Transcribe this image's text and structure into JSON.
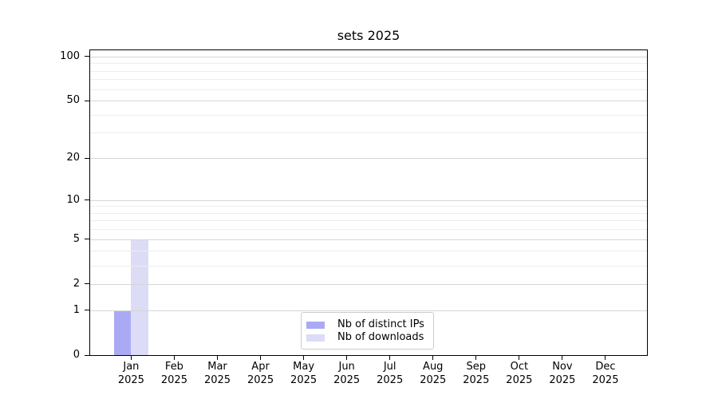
{
  "colors": {
    "grid_major": "#d6d6d6",
    "grid_minor": "#ededed",
    "axis": "#000000",
    "legend_border": "#cccccc",
    "background": "#ffffff"
  },
  "chart_data": {
    "type": "bar",
    "title": "sets 2025",
    "categories": [
      "Jan 2025",
      "Feb 2025",
      "Mar 2025",
      "Apr 2025",
      "May 2025",
      "Jun 2025",
      "Jul 2025",
      "Aug 2025",
      "Sep 2025",
      "Oct 2025",
      "Nov 2025",
      "Dec 2025"
    ],
    "series": [
      {
        "name": "Nb of distinct IPs",
        "color": "#aaaaf4",
        "values": [
          1,
          0,
          0,
          0,
          0,
          0,
          0,
          0,
          0,
          0,
          0,
          0
        ]
      },
      {
        "name": "Nb of downloads",
        "color": "#dcdcf6",
        "values": [
          5,
          0,
          0,
          0,
          0,
          0,
          0,
          0,
          0,
          0,
          0,
          0
        ]
      }
    ],
    "yscale": "log1p",
    "ylim": [
      0,
      110
    ],
    "yticks_major": [
      0,
      1,
      2,
      5,
      10,
      20,
      50,
      100
    ],
    "yticks_minor": [
      3,
      4,
      6,
      7,
      8,
      9,
      30,
      40,
      60,
      70,
      80,
      90
    ],
    "xlabel": "",
    "ylabel": "",
    "grid": "horizontal",
    "legend_position": "lower center inside"
  }
}
